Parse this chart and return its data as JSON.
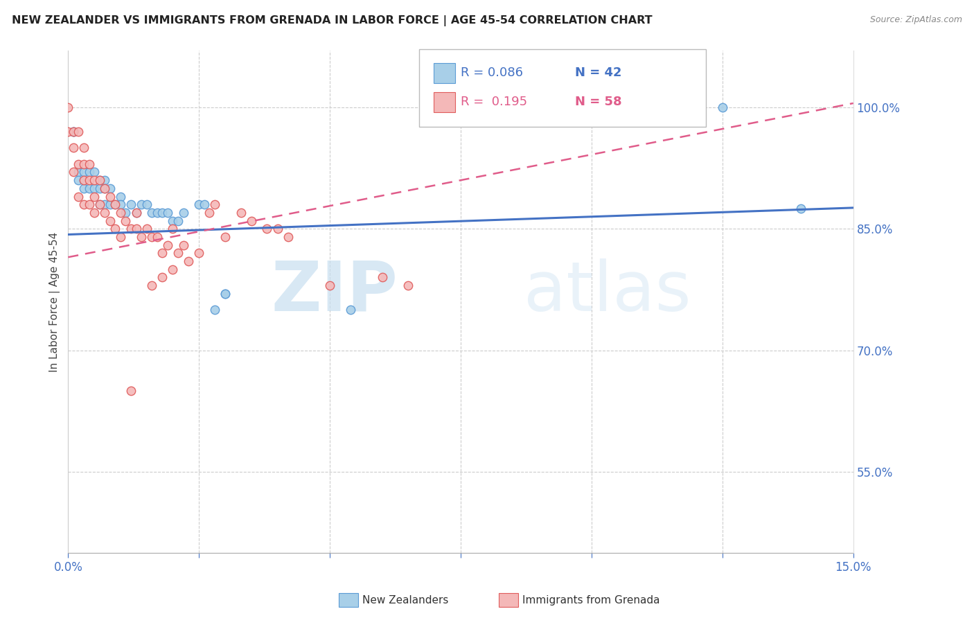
{
  "title": "NEW ZEALANDER VS IMMIGRANTS FROM GRENADA IN LABOR FORCE | AGE 45-54 CORRELATION CHART",
  "source": "Source: ZipAtlas.com",
  "ylabel": "In Labor Force | Age 45-54",
  "xlim": [
    0.0,
    0.15
  ],
  "ylim": [
    0.45,
    1.07
  ],
  "yticks_right": [
    0.55,
    0.7,
    0.85,
    1.0
  ],
  "ytick_labels_right": [
    "55.0%",
    "70.0%",
    "85.0%",
    "100.0%"
  ],
  "nz_color": "#a8cfe8",
  "nz_edge_color": "#5b9bd5",
  "gren_color": "#f4b8b8",
  "gren_edge_color": "#e05c5c",
  "trend_nz_color": "#4472c4",
  "trend_gren_color": "#e05c8a",
  "watermark_zip": "ZIP",
  "watermark_atlas": "atlas",
  "nz_trend_x0": 0.0,
  "nz_trend_y0": 0.843,
  "nz_trend_x1": 0.15,
  "nz_trend_y1": 0.876,
  "gren_trend_x0": 0.0,
  "gren_trend_y0": 0.815,
  "gren_trend_x1": 0.15,
  "gren_trend_y1": 1.005,
  "nz_x": [
    0.001,
    0.001,
    0.002,
    0.002,
    0.003,
    0.003,
    0.003,
    0.004,
    0.004,
    0.005,
    0.005,
    0.006,
    0.006,
    0.006,
    0.007,
    0.007,
    0.007,
    0.008,
    0.008,
    0.009,
    0.01,
    0.01,
    0.011,
    0.012,
    0.013,
    0.014,
    0.015,
    0.016,
    0.017,
    0.018,
    0.019,
    0.02,
    0.021,
    0.022,
    0.025,
    0.026,
    0.028,
    0.03,
    0.03,
    0.054,
    0.125,
    0.14
  ],
  "nz_y": [
    0.97,
    0.97,
    0.92,
    0.91,
    0.92,
    0.91,
    0.9,
    0.92,
    0.9,
    0.92,
    0.9,
    0.91,
    0.9,
    0.88,
    0.91,
    0.9,
    0.88,
    0.9,
    0.88,
    0.88,
    0.89,
    0.88,
    0.87,
    0.88,
    0.87,
    0.88,
    0.88,
    0.87,
    0.87,
    0.87,
    0.87,
    0.86,
    0.86,
    0.87,
    0.88,
    0.88,
    0.75,
    0.77,
    0.77,
    0.75,
    1.0,
    0.875
  ],
  "gren_x": [
    0.0,
    0.0,
    0.001,
    0.001,
    0.001,
    0.002,
    0.002,
    0.002,
    0.003,
    0.003,
    0.003,
    0.003,
    0.004,
    0.004,
    0.004,
    0.005,
    0.005,
    0.005,
    0.006,
    0.006,
    0.007,
    0.007,
    0.008,
    0.008,
    0.009,
    0.009,
    0.01,
    0.01,
    0.011,
    0.012,
    0.013,
    0.013,
    0.014,
    0.015,
    0.016,
    0.017,
    0.018,
    0.019,
    0.02,
    0.021,
    0.022,
    0.023,
    0.025,
    0.027,
    0.028,
    0.03,
    0.033,
    0.035,
    0.038,
    0.04,
    0.042,
    0.05,
    0.06,
    0.065,
    0.016,
    0.018,
    0.02,
    0.012
  ],
  "gren_y": [
    1.0,
    0.97,
    0.97,
    0.95,
    0.92,
    0.97,
    0.93,
    0.89,
    0.95,
    0.93,
    0.91,
    0.88,
    0.93,
    0.91,
    0.88,
    0.91,
    0.89,
    0.87,
    0.91,
    0.88,
    0.9,
    0.87,
    0.89,
    0.86,
    0.88,
    0.85,
    0.87,
    0.84,
    0.86,
    0.85,
    0.87,
    0.85,
    0.84,
    0.85,
    0.84,
    0.84,
    0.82,
    0.83,
    0.85,
    0.82,
    0.83,
    0.81,
    0.82,
    0.87,
    0.88,
    0.84,
    0.87,
    0.86,
    0.85,
    0.85,
    0.84,
    0.78,
    0.79,
    0.78,
    0.78,
    0.79,
    0.8,
    0.65
  ]
}
